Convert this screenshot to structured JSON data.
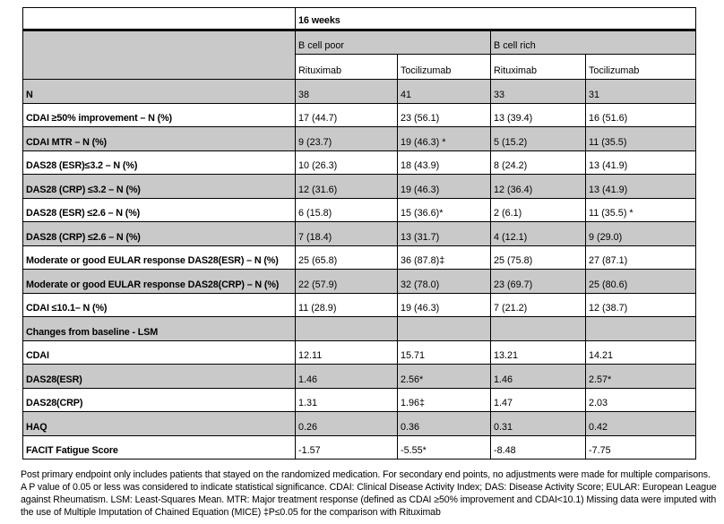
{
  "colors": {
    "row_shade": "#c9c9c9",
    "border": "#000000",
    "page_background": "#ffffff"
  },
  "table": {
    "period_header": "16 weeks",
    "group_headers": [
      "B cell poor",
      "B cell rich"
    ],
    "column_headers": [
      "Rituximab",
      "Tocilizumab",
      "Rituximab",
      "Tocilizumab"
    ],
    "rows": [
      {
        "label": "N",
        "values": [
          "38",
          "41",
          "33",
          "31"
        ],
        "shaded": true
      },
      {
        "label": "CDAI ≥50% improvement – N (%)",
        "values": [
          "17 (44.7)",
          "23 (56.1)",
          "13 (39.4)",
          "16 (51.6)"
        ],
        "shaded": false
      },
      {
        "label": "CDAI MTR – N (%)",
        "values": [
          "9 (23.7)",
          "19 (46.3) *",
          "5 (15.2)",
          "11 (35.5)"
        ],
        "shaded": true
      },
      {
        "label": "DAS28 (ESR)≤3.2 – N (%)",
        "values": [
          "10 (26.3)",
          "18 (43.9)",
          "8 (24.2)",
          "13 (41.9)"
        ],
        "shaded": false
      },
      {
        "label": "DAS28 (CRP) ≤3.2 – N (%)",
        "values": [
          "12 (31.6)",
          "19 (46.3)",
          "12 (36.4)",
          "13 (41.9)"
        ],
        "shaded": true
      },
      {
        "label": "DAS28 (ESR) ≤2.6 – N (%)",
        "values": [
          "6 (15.8)",
          "15 (36.6)*",
          "2 (6.1)",
          "11 (35.5) *"
        ],
        "shaded": false
      },
      {
        "label": "DAS28 (CRP) ≤2.6 – N (%)",
        "values": [
          "7 (18.4)",
          "13 (31.7)",
          "4 (12.1)",
          "9 (29.0)"
        ],
        "shaded": true
      },
      {
        "label": "Moderate or good EULAR response DAS28(ESR) – N (%)",
        "values": [
          "25 (65.8)",
          "36 (87.8)‡",
          "25 (75.8)",
          "27 (87.1)"
        ],
        "shaded": false
      },
      {
        "label": "Moderate or good EULAR response DAS28(CRP) – N (%)",
        "values": [
          "22 (57.9)",
          "32 (78.0)",
          "23 (69.7)",
          "25 (80.6)"
        ],
        "shaded": true
      },
      {
        "label": "CDAI ≤10.1– N (%)",
        "values": [
          "11 (28.9)",
          "19 (46.3)",
          "7 (21.2)",
          "12 (38.7)"
        ],
        "shaded": false
      },
      {
        "label": "Changes from baseline - LSM",
        "values": [
          "",
          "",
          "",
          ""
        ],
        "shaded": true
      },
      {
        "label": "CDAI",
        "values": [
          "12.11",
          "15.71",
          "13.21",
          "14.21"
        ],
        "shaded": false
      },
      {
        "label": "DAS28(ESR)",
        "values": [
          "1.46",
          "2.56*",
          "1.46",
          "2.57*"
        ],
        "shaded": true
      },
      {
        "label": "DAS28(CRP)",
        "values": [
          "1.31",
          "1.96‡",
          "1.47",
          "2.03"
        ],
        "shaded": false
      },
      {
        "label": "HAQ",
        "values": [
          "0.26",
          "0.36",
          "0.31",
          "0.42"
        ],
        "shaded": true
      },
      {
        "label": "FACIT Fatigue Score",
        "values": [
          "-1.57",
          "-5.55*",
          "-8.48",
          "-7.75"
        ],
        "shaded": false
      }
    ]
  },
  "footnote": "Post primary endpoint only includes patients that stayed on the randomized medication. For secondary end points, no adjustments were made for multiple comparisons. A P value of 0.05 or less was considered to indicate statistical significance. CDAI: Clinical Disease Activity Index; DAS: Disease Activity Score; EULAR: European League against Rheumatism. LSM: Least-Squares Mean. MTR: Major treatment response (defined as CDAI ≥50% improvement and CDAI<10.1) Missing data were imputed with the use of Multiple Imputation of Chained Equation (MICE) ‡P≤0.05 for the comparison with Rituximab"
}
